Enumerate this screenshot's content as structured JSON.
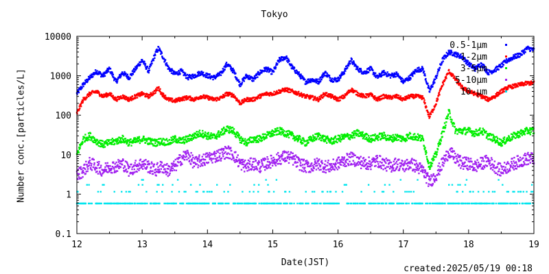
{
  "chart_data": {
    "type": "scatter",
    "title": "Tokyo",
    "xlabel": "Date(JST)",
    "ylabel": "Number conc.[particles/L]",
    "y_scale": "log",
    "xlim": [
      12,
      19
    ],
    "ylim": [
      0.1,
      10000
    ],
    "x_ticks": [
      "12",
      "13",
      "14",
      "15",
      "16",
      "17",
      "18",
      "19"
    ],
    "y_ticks": [
      "0.1",
      "1",
      "10",
      "100",
      "1000",
      "10000"
    ],
    "grid": false,
    "legend_position": "top-right",
    "created_text": "created:2025/05/19 00:18",
    "series": [
      {
        "name": "0.5-1μm",
        "color": "#0000ff",
        "x": [
          12.0,
          12.1,
          12.2,
          12.3,
          12.4,
          12.5,
          12.6,
          12.7,
          12.8,
          12.9,
          13.0,
          13.1,
          13.2,
          13.25,
          13.3,
          13.4,
          13.5,
          13.6,
          13.7,
          13.8,
          13.9,
          14.0,
          14.1,
          14.2,
          14.3,
          14.4,
          14.5,
          14.6,
          14.7,
          14.8,
          14.9,
          15.0,
          15.1,
          15.2,
          15.3,
          15.4,
          15.5,
          15.6,
          15.7,
          15.8,
          15.9,
          16.0,
          16.1,
          16.2,
          16.3,
          16.4,
          16.5,
          16.6,
          16.7,
          16.8,
          16.9,
          17.0,
          17.1,
          17.2,
          17.3,
          17.4,
          17.5,
          17.6,
          17.7,
          17.8,
          17.9,
          18.0,
          18.1,
          18.2,
          18.3,
          18.4,
          18.5,
          18.6,
          18.7,
          18.8,
          18.9,
          19.0
        ],
        "y": [
          350,
          600,
          900,
          1300,
          1000,
          1500,
          700,
          1200,
          900,
          1500,
          2500,
          1300,
          3500,
          5000,
          3500,
          1600,
          1100,
          1300,
          900,
          1000,
          1200,
          1000,
          900,
          1100,
          2000,
          1300,
          600,
          1000,
          800,
          1200,
          1500,
          1200,
          2500,
          3000,
          1600,
          1100,
          700,
          800,
          700,
          1200,
          800,
          800,
          1300,
          2500,
          1500,
          1200,
          1500,
          900,
          1200,
          1000,
          1100,
          700,
          900,
          1400,
          1500,
          400,
          900,
          2500,
          4000,
          3500,
          3000,
          2000,
          1500,
          2000,
          1200,
          1400,
          1800,
          2500,
          3000,
          3500,
          5000,
          4500
        ]
      },
      {
        "name": "1-2μm",
        "color": "#ff0000",
        "x": [
          12.0,
          12.1,
          12.2,
          12.3,
          12.4,
          12.5,
          12.6,
          12.7,
          12.8,
          12.9,
          13.0,
          13.1,
          13.2,
          13.25,
          13.3,
          13.4,
          13.5,
          13.6,
          13.7,
          13.8,
          13.9,
          14.0,
          14.1,
          14.2,
          14.3,
          14.4,
          14.5,
          14.6,
          14.7,
          14.8,
          14.9,
          15.0,
          15.1,
          15.2,
          15.3,
          15.4,
          15.5,
          15.6,
          15.7,
          15.8,
          15.9,
          16.0,
          16.1,
          16.2,
          16.3,
          16.4,
          16.5,
          16.6,
          16.7,
          16.8,
          16.9,
          17.0,
          17.1,
          17.2,
          17.3,
          17.4,
          17.5,
          17.6,
          17.7,
          17.8,
          17.9,
          18.0,
          18.1,
          18.2,
          18.3,
          18.4,
          18.5,
          18.6,
          18.7,
          18.8,
          18.9,
          19.0
        ],
        "y": [
          110,
          250,
          350,
          400,
          300,
          350,
          250,
          300,
          250,
          300,
          350,
          300,
          400,
          500,
          350,
          250,
          230,
          260,
          280,
          250,
          300,
          280,
          250,
          270,
          350,
          320,
          200,
          250,
          250,
          300,
          350,
          350,
          400,
          450,
          400,
          350,
          300,
          280,
          250,
          350,
          300,
          250,
          300,
          450,
          350,
          300,
          330,
          250,
          300,
          280,
          300,
          250,
          300,
          300,
          280,
          90,
          200,
          600,
          1300,
          800,
          500,
          400,
          350,
          300,
          250,
          300,
          400,
          500,
          550,
          600,
          650,
          650
        ]
      },
      {
        "name": "3-5μm",
        "color": "#00ee00",
        "x": [
          12.0,
          12.1,
          12.2,
          12.3,
          12.4,
          12.5,
          12.6,
          12.7,
          12.8,
          12.9,
          13.0,
          13.1,
          13.2,
          13.3,
          13.4,
          13.5,
          13.6,
          13.7,
          13.8,
          13.9,
          14.0,
          14.1,
          14.2,
          14.3,
          14.4,
          14.5,
          14.6,
          14.7,
          14.8,
          14.9,
          15.0,
          15.1,
          15.2,
          15.3,
          15.4,
          15.5,
          15.6,
          15.7,
          15.8,
          15.9,
          16.0,
          16.1,
          16.2,
          16.3,
          16.4,
          16.5,
          16.6,
          16.7,
          16.8,
          16.9,
          17.0,
          17.1,
          17.2,
          17.3,
          17.4,
          17.5,
          17.6,
          17.7,
          17.8,
          17.9,
          18.0,
          18.1,
          18.2,
          18.3,
          18.4,
          18.5,
          18.6,
          18.7,
          18.8,
          18.9,
          19.0
        ],
        "y": [
          10,
          25,
          30,
          22,
          18,
          20,
          22,
          25,
          20,
          22,
          25,
          22,
          20,
          22,
          20,
          25,
          22,
          25,
          30,
          35,
          30,
          28,
          35,
          45,
          40,
          25,
          20,
          25,
          25,
          30,
          35,
          40,
          35,
          30,
          25,
          20,
          25,
          30,
          25,
          22,
          25,
          28,
          30,
          35,
          30,
          25,
          28,
          30,
          25,
          28,
          25,
          30,
          28,
          25,
          5,
          10,
          35,
          120,
          40,
          40,
          40,
          35,
          40,
          30,
          25,
          20,
          25,
          30,
          35,
          40,
          40
        ]
      },
      {
        "name": "5-10μm",
        "color": "#a020f0",
        "x": [
          12.0,
          12.1,
          12.2,
          12.3,
          12.4,
          12.5,
          12.6,
          12.7,
          12.8,
          12.9,
          13.0,
          13.1,
          13.2,
          13.3,
          13.4,
          13.5,
          13.6,
          13.7,
          13.8,
          13.9,
          14.0,
          14.1,
          14.2,
          14.3,
          14.4,
          14.5,
          14.6,
          14.7,
          14.8,
          14.9,
          15.0,
          15.1,
          15.2,
          15.3,
          15.4,
          15.5,
          15.6,
          15.7,
          15.8,
          15.9,
          16.0,
          16.1,
          16.2,
          16.3,
          16.4,
          16.5,
          16.6,
          16.7,
          16.8,
          16.9,
          17.0,
          17.1,
          17.2,
          17.3,
          17.4,
          17.5,
          17.6,
          17.7,
          17.8,
          17.9,
          18.0,
          18.1,
          18.2,
          18.3,
          18.4,
          18.5,
          18.6,
          18.7,
          18.8,
          18.9,
          19.0
        ],
        "y": [
          3,
          4,
          6,
          5,
          4,
          5,
          5,
          6,
          4,
          5,
          6,
          5,
          4,
          5,
          4,
          5,
          8,
          10,
          6,
          7,
          8,
          9,
          10,
          12,
          10,
          6,
          5,
          6,
          5,
          6,
          7,
          8,
          9,
          8,
          6,
          5,
          5,
          6,
          5,
          5,
          6,
          7,
          8,
          7,
          6,
          6,
          7,
          6,
          5,
          6,
          5,
          6,
          5,
          4,
          2,
          3,
          6,
          12,
          8,
          6,
          6,
          5,
          6,
          7,
          5,
          4,
          5,
          6,
          7,
          8,
          8
        ]
      },
      {
        "name": "10-μm",
        "color": "#00e5ee",
        "x": [
          12.0,
          12.1,
          12.2,
          12.3,
          12.4,
          12.5,
          12.6,
          12.7,
          12.8,
          12.9,
          13.0,
          13.1,
          13.2,
          13.3,
          13.4,
          13.5,
          13.6,
          13.7,
          13.8,
          13.9,
          14.0,
          14.1,
          14.2,
          14.3,
          14.4,
          14.5,
          14.6,
          14.7,
          14.8,
          14.9,
          15.0,
          15.1,
          15.2,
          15.3,
          15.4,
          15.5,
          15.6,
          15.7,
          15.8,
          15.9,
          16.0,
          16.1,
          16.2,
          16.3,
          16.4,
          16.5,
          16.6,
          16.7,
          16.8,
          16.9,
          17.0,
          17.1,
          17.2,
          17.3,
          17.4,
          17.5,
          17.6,
          17.7,
          17.8,
          17.9,
          18.0,
          18.1,
          18.2,
          18.3,
          18.4,
          18.5,
          18.6,
          18.7,
          18.8,
          18.9,
          19.0
        ],
        "y": [
          0.6,
          1.2,
          0.6,
          1.7,
          0.6,
          1.2,
          0.6,
          0.6,
          1.2,
          0.6,
          0.6,
          1.7,
          0.6,
          1.2,
          0.6,
          1.7,
          0.6,
          2.3,
          1.2,
          0.6,
          1.2,
          0.6,
          1.7,
          2.3,
          1.2,
          0.6,
          1.2,
          0.6,
          1.7,
          0.6,
          1.2,
          1.7,
          2.3,
          1.2,
          0.6,
          1.2,
          0.6,
          1.7,
          0.6,
          1.2,
          0.6,
          1.2,
          1.7,
          1.2,
          0.6,
          1.2,
          0.6,
          1.7,
          0.6,
          1.2,
          0.6,
          1.2,
          0.6,
          1.7,
          0.6,
          1.2,
          0.6,
          2.3,
          1.2,
          0.6,
          1.2,
          0.6,
          1.7,
          0.6,
          1.2,
          0.6,
          1.2,
          1.7,
          0.6,
          1.2,
          0.6
        ]
      }
    ]
  }
}
